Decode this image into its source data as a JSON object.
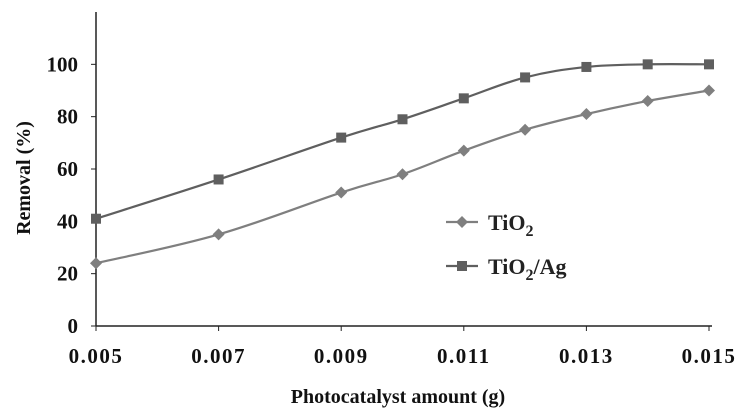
{
  "chart_data": {
    "type": "line",
    "title": "",
    "xlabel": "Photocatalyst amount (g)",
    "ylabel": "Removal (%)",
    "xlim": [
      0.005,
      0.015
    ],
    "ylim": [
      0,
      120
    ],
    "x_ticks": [
      "0.005",
      "0.007",
      "0.009",
      "0.011",
      "0.013",
      "0.015"
    ],
    "x_tick_values": [
      0.005,
      0.007,
      0.009,
      0.011,
      0.013,
      0.015
    ],
    "y_ticks": [
      "0",
      "20",
      "40",
      "60",
      "80",
      "100"
    ],
    "y_tick_values": [
      0,
      20,
      40,
      60,
      80,
      100
    ],
    "grid": false,
    "legend_position": "right",
    "series": [
      {
        "name": "TiO2",
        "name_base": "TiO",
        "name_sub": "2",
        "name_suffix": "",
        "marker": "diamond",
        "color": "#7f7f7f",
        "x": [
          0.005,
          0.007,
          0.009,
          0.01,
          0.011,
          0.012,
          0.013,
          0.014,
          0.015
        ],
        "values": [
          24,
          35,
          51,
          58,
          67,
          75,
          81,
          86,
          90
        ]
      },
      {
        "name": "TiO2/Ag",
        "name_base": "TiO",
        "name_sub": "2",
        "name_suffix": "/Ag",
        "marker": "square",
        "color": "#5f5f5f",
        "x": [
          0.005,
          0.007,
          0.009,
          0.01,
          0.011,
          0.012,
          0.013,
          0.014,
          0.015
        ],
        "values": [
          41,
          56,
          72,
          79,
          87,
          95,
          99,
          100,
          100
        ]
      }
    ]
  }
}
